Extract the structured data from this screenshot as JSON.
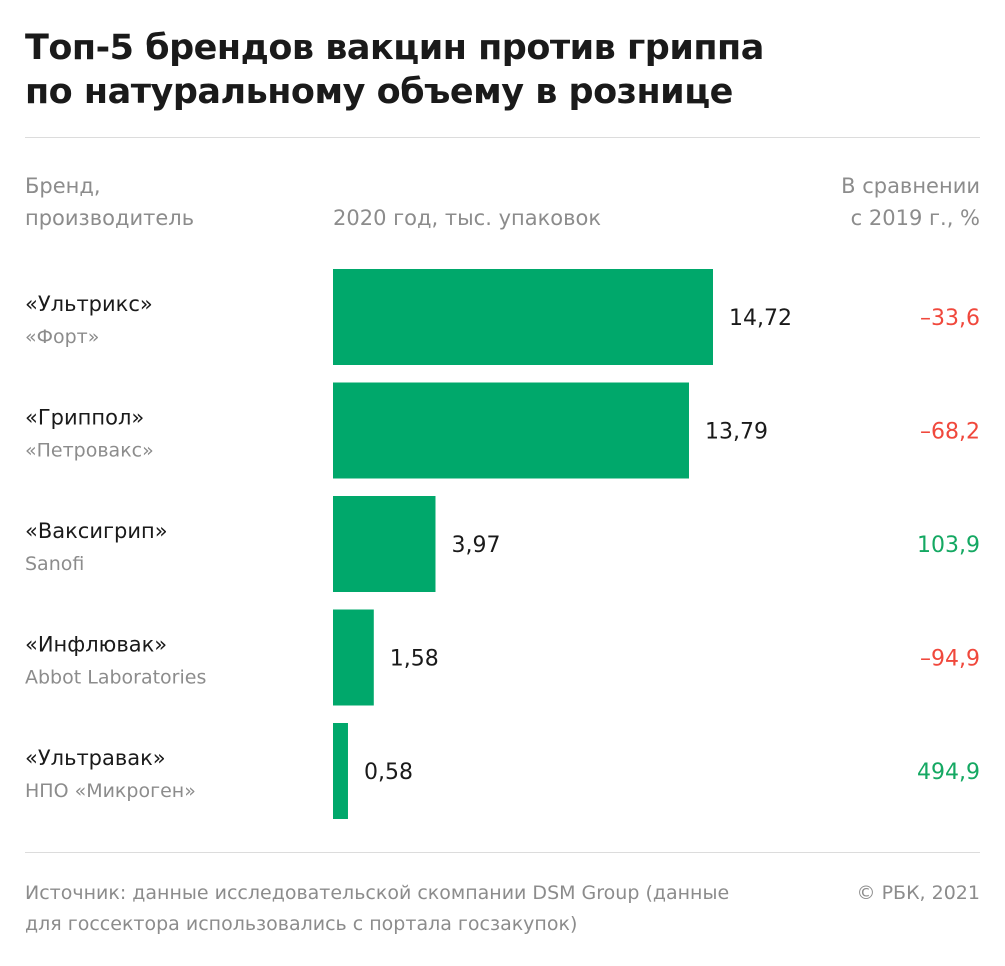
{
  "title": {
    "line1": "Топ-5 брендов вакцин против гриппа",
    "line2": "по натуральному объему в рознице"
  },
  "headers": {
    "brand_line1": "Бренд,",
    "brand_line2": "производитель",
    "value": "2020 год, тыс. упаковок",
    "change_line1": "В сравнении",
    "change_line2": "с 2019 г., %"
  },
  "colors": {
    "bar": "#00a86b",
    "positive": "#14a862",
    "negative": "#f0483c",
    "muted": "#8c8c8c",
    "text": "#1a1a1a"
  },
  "chart_data": {
    "type": "bar",
    "orientation": "horizontal",
    "categories": [
      "«Ультрикс»",
      "«Гриппол»",
      "«Ваксигрип»",
      "«Инфлювак»",
      "«Ультравак»"
    ],
    "producers": [
      "«Форт»",
      "«Петровакс»",
      "Sanofi",
      "Abbot Laboratories",
      "НПО «Микроген»"
    ],
    "values": [
      14.72,
      13.79,
      3.97,
      1.58,
      0.58
    ],
    "value_labels": [
      "14,72",
      "13,79",
      "3,97",
      "1,58",
      "0,58"
    ],
    "change": [
      -33.6,
      -68.2,
      103.9,
      -94.9,
      494.9
    ],
    "change_labels": [
      "–33,6",
      "–68,2",
      "103,9",
      "–94,9",
      "494,9"
    ],
    "xlim": [
      0,
      14.72
    ],
    "grid": false
  },
  "footer": {
    "source_line1": "Источник: данные исследовательской скомпании DSM Group (данные",
    "source_line2": "для госсектора использовались с портала госзакупок)",
    "copyright": "© РБК, 2021"
  }
}
